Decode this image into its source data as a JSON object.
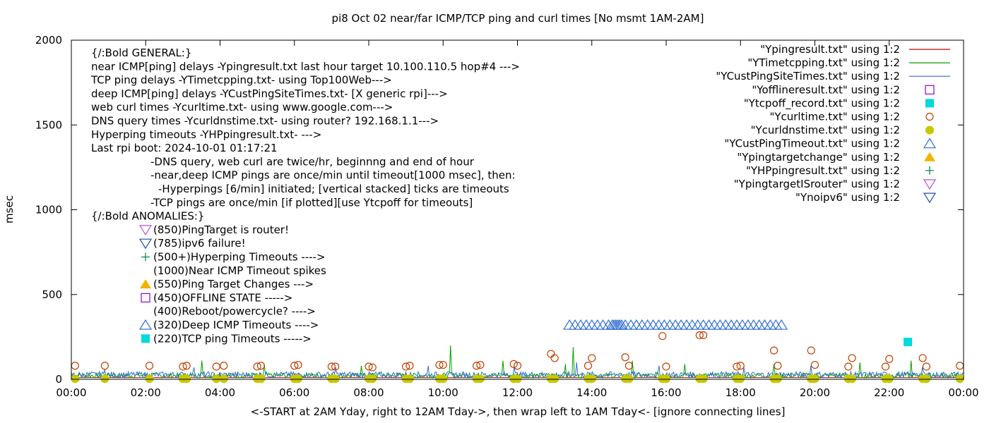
{
  "chart_data": {
    "type": "line",
    "title": "pi8 Oct 02  near/far ICMP/TCP ping and curl times [No msmt 1AM-2AM]",
    "xlabel": "<-START at 2AM Yday, right to 12AM Tday->, then wrap left to 1AM Tday<- [ignore connecting lines]",
    "ylabel": "msec",
    "xlim": [
      0,
      24
    ],
    "ylim": [
      0,
      2000
    ],
    "x_ticks": [
      "00:00",
      "02:00",
      "04:00",
      "06:00",
      "08:00",
      "10:00",
      "12:00",
      "14:00",
      "16:00",
      "18:00",
      "20:00",
      "22:00",
      "00:00"
    ],
    "y_ticks": [
      "0",
      "500",
      "1000",
      "1500",
      "2000"
    ],
    "legend_position": "top-right",
    "legend": [
      {
        "label": "\"Ypingresult.txt\" using 1:2",
        "style": "line",
        "color": "#cc0000"
      },
      {
        "label": "\"YTimetcpping.txt\" using 1:2",
        "style": "line",
        "color": "#00a000"
      },
      {
        "label": "\"YCustPingSiteTimes.txt\" using 1:2",
        "style": "line",
        "color": "#2f6fd0"
      },
      {
        "label": "\"Yofflineresult.txt\" using 1:2",
        "style": "open-square",
        "color": "#9400d3"
      },
      {
        "label": "\"Ytcpoff_record.txt\" using 1:2",
        "style": "filled-square",
        "color": "#00dada"
      },
      {
        "label": "\"Ycurltime.txt\" using 1:2",
        "style": "open-circle",
        "color": "#c04000"
      },
      {
        "label": "\"Ycurldnstime.txt\" using 1:2",
        "style": "filled-circle",
        "color": "#c8c800"
      },
      {
        "label": "\"YCustPingTimeout.txt\" using 1:2",
        "style": "open-triangle-up",
        "color": "#2f6fd0"
      },
      {
        "label": "\"Ypingtargetchange\" using 1:2",
        "style": "filled-triangle-up",
        "color": "#f0b400"
      },
      {
        "label": "\"YHPpingresult.txt\" using 1:2",
        "style": "plus",
        "color": "#00804a"
      },
      {
        "label": "\"YpingtargetISrouter\" using 1:2",
        "style": "open-triangle-down",
        "color": "#b050e0"
      },
      {
        "label": "\"Ynoipv6\" using 1:2",
        "style": "open-triangle-down",
        "color": "#1f4fa0"
      }
    ],
    "notes": [
      {
        "text": "{/:Bold GENERAL:}",
        "indent": 0
      },
      {
        "text": "near ICMP[ping] delays -Ypingresult.txt last hour target 10.100.110.5 hop#4 --->",
        "indent": 0
      },
      {
        "text": "TCP ping delays -YTimetcpping.txt- using Top100Web--->",
        "indent": 0
      },
      {
        "text": "deep ICMP[ping] delays -YCustPingSiteTimes.txt- [X generic rpi]--->",
        "indent": 0
      },
      {
        "text": "web curl times -Ycurltime.txt- using www.google.com--->",
        "indent": 0
      },
      {
        "text": "DNS query times -Ycurldnstime.txt- using router? 192.168.1.1--->",
        "indent": 0
      },
      {
        "text": "Hyperping timeouts -YHPpingresult.txt- --->",
        "indent": 0
      },
      {
        "text": "Last rpi boot: 2024-10-01 01:17:21",
        "indent": 0
      },
      {
        "text": "-DNS query, web curl are twice/hr, beginnng and end of hour",
        "indent": 1
      },
      {
        "text": "-near,deep ICMP pings are once/min until timeout[1000 msec], then:",
        "indent": 1
      },
      {
        "text": "-Hyperpings [6/min] initiated; [vertical stacked] ticks are timeouts",
        "indent": 2
      },
      {
        "text": "-TCP pings are once/min [if plotted][use Ytcpoff for timeouts]",
        "indent": 1
      },
      {
        "text": "{/:Bold ANOMALIES:}",
        "indent": 0
      },
      {
        "text": "(850)PingTarget is router!",
        "indent": 3,
        "symbol": "open-triangle-down",
        "color": "#b050e0"
      },
      {
        "text": "(785)ipv6 failure!",
        "indent": 3,
        "symbol": "open-triangle-down",
        "color": "#1f4fa0"
      },
      {
        "text": "(500+)Hyperping Timeouts ---->",
        "indent": 3,
        "symbol": "plus",
        "color": "#00804a"
      },
      {
        "text": "(1000)Near ICMP Timeout spikes",
        "indent": 3,
        "symbol": "none",
        "color": ""
      },
      {
        "text": "(550)Ping Target Changes --->",
        "indent": 3,
        "symbol": "filled-triangle-up",
        "color": "#f0b400"
      },
      {
        "text": "(450)OFFLINE STATE ----->",
        "indent": 3,
        "symbol": "open-square",
        "color": "#9400d3"
      },
      {
        "text": "(400)Reboot/powercycle? ---->",
        "indent": 3,
        "symbol": "none",
        "color": ""
      },
      {
        "text": "(320)Deep ICMP Timeouts ---->",
        "indent": 3,
        "symbol": "open-triangle-up",
        "color": "#2f6fd0"
      },
      {
        "text": "(220)TCP ping Timeouts ----->",
        "indent": 3,
        "symbol": "filled-square",
        "color": "#00dada"
      }
    ],
    "series": [
      {
        "name": "\"Ypingresult.txt\" using 1:2",
        "approx_level_msec": 10
      },
      {
        "name": "\"YTimetcpping.txt\" using 1:2",
        "approx_level_msec": 25,
        "spikes": [
          [
            3.5,
            110
          ],
          [
            5.2,
            90
          ],
          [
            7.8,
            80
          ],
          [
            10.2,
            200
          ],
          [
            11.6,
            110
          ],
          [
            13.3,
            90
          ],
          [
            13.5,
            190
          ],
          [
            15.1,
            110
          ],
          [
            16.5,
            90
          ],
          [
            18.9,
            90
          ],
          [
            21.2,
            100
          ],
          [
            22.6,
            110
          ]
        ]
      },
      {
        "name": "\"YCustPingSiteTimes.txt\" using 1:2",
        "approx_level_msec": 30,
        "spikes": [
          [
            0.9,
            60
          ],
          [
            3.3,
            70
          ],
          [
            7.1,
            70
          ],
          [
            9.6,
            80
          ],
          [
            11.9,
            80
          ],
          [
            13.6,
            100
          ],
          [
            15.8,
            80
          ],
          [
            18.1,
            70
          ],
          [
            19.9,
            80
          ],
          [
            22.9,
            70
          ]
        ]
      }
    ],
    "curl_times": [
      [
        0.1,
        80
      ],
      [
        0.9,
        80
      ],
      [
        2.1,
        80
      ],
      [
        3.0,
        75
      ],
      [
        3.1,
        80
      ],
      [
        3.9,
        75
      ],
      [
        4.1,
        80
      ],
      [
        5.0,
        75
      ],
      [
        5.1,
        80
      ],
      [
        6.0,
        80
      ],
      [
        6.1,
        85
      ],
      [
        7.0,
        75
      ],
      [
        7.1,
        75
      ],
      [
        8.0,
        75
      ],
      [
        8.1,
        70
      ],
      [
        9.0,
        75
      ],
      [
        9.1,
        80
      ],
      [
        9.9,
        85
      ],
      [
        10.0,
        85
      ],
      [
        10.9,
        80
      ],
      [
        11.0,
        85
      ],
      [
        11.9,
        90
      ],
      [
        12.0,
        80
      ],
      [
        12.9,
        150
      ],
      [
        13.0,
        125
      ],
      [
        13.9,
        80
      ],
      [
        14.0,
        125
      ],
      [
        14.9,
        130
      ],
      [
        15.0,
        80
      ],
      [
        15.9,
        255
      ],
      [
        16.0,
        75
      ],
      [
        16.9,
        260
      ],
      [
        17.0,
        260
      ],
      [
        17.9,
        75
      ],
      [
        18.0,
        80
      ],
      [
        18.9,
        170
      ],
      [
        19.0,
        80
      ],
      [
        19.9,
        170
      ],
      [
        20.0,
        85
      ],
      [
        20.9,
        75
      ],
      [
        21.0,
        125
      ],
      [
        21.9,
        75
      ],
      [
        22.0,
        120
      ],
      [
        22.9,
        125
      ],
      [
        23.0,
        75
      ],
      [
        23.9,
        80
      ]
    ],
    "dns_times": [
      [
        0.1,
        3
      ],
      [
        0.9,
        3
      ],
      [
        2.1,
        3
      ],
      [
        3.0,
        3
      ],
      [
        3.1,
        3
      ],
      [
        3.9,
        3
      ],
      [
        4.1,
        3
      ],
      [
        5.0,
        3
      ],
      [
        5.1,
        3
      ],
      [
        6.0,
        3
      ],
      [
        6.1,
        3
      ],
      [
        7.0,
        3
      ],
      [
        7.1,
        3
      ],
      [
        8.0,
        3
      ],
      [
        8.1,
        3
      ],
      [
        9.0,
        3
      ],
      [
        9.1,
        3
      ],
      [
        9.9,
        3
      ],
      [
        10.0,
        3
      ],
      [
        10.9,
        3
      ],
      [
        11.0,
        3
      ],
      [
        11.9,
        3
      ],
      [
        12.0,
        3
      ],
      [
        12.9,
        3
      ],
      [
        13.0,
        3
      ],
      [
        13.9,
        3
      ],
      [
        14.0,
        3
      ],
      [
        14.9,
        3
      ],
      [
        15.0,
        3
      ],
      [
        15.9,
        3
      ],
      [
        16.0,
        3
      ],
      [
        16.9,
        3
      ],
      [
        17.0,
        3
      ],
      [
        17.9,
        3
      ],
      [
        18.0,
        3
      ],
      [
        18.9,
        3
      ],
      [
        19.0,
        3
      ],
      [
        19.9,
        3
      ],
      [
        20.0,
        3
      ],
      [
        20.9,
        3
      ],
      [
        21.0,
        3
      ],
      [
        21.9,
        3
      ],
      [
        22.0,
        3
      ],
      [
        22.9,
        3
      ],
      [
        23.0,
        3
      ],
      [
        23.9,
        3
      ]
    ],
    "deep_icmp_timeouts": {
      "y": 320,
      "x": [
        13.4,
        13.55,
        13.7,
        13.85,
        14.0,
        14.15,
        14.3,
        14.45,
        14.55,
        14.6,
        14.65,
        14.7,
        14.75,
        14.8,
        14.9,
        15.05,
        15.2,
        15.35,
        15.5,
        15.65,
        15.8,
        15.95,
        16.1,
        16.25,
        16.4,
        16.55,
        16.7,
        16.85,
        17.0,
        17.15,
        17.3,
        17.45,
        17.6,
        17.75,
        17.9,
        18.05,
        18.2,
        18.35,
        18.5,
        18.65,
        18.8,
        18.95,
        19.1
      ]
    },
    "tcp_ping_timeouts": [
      [
        22.5,
        220
      ]
    ]
  }
}
